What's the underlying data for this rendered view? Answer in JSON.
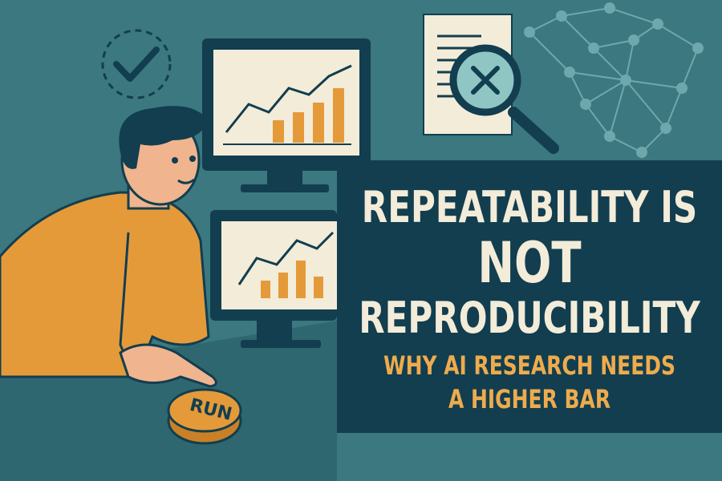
{
  "headline": {
    "line1": "REPEATABILITY IS",
    "line2": "NOT",
    "line3": "REPRODUCIBILITY"
  },
  "subtitle": {
    "line1": "WHY AI RESEARCH NEEDS",
    "line2": "A HIGHER BAR"
  },
  "button": {
    "label": "RUN"
  },
  "icons": [
    "checkmark-icon",
    "document-magnifier-x-icon",
    "network-graph-icon",
    "monitor-chart-icon"
  ],
  "colors": {
    "background": "#3b7880",
    "panel": "#123e4f",
    "title": "#f3ecd9",
    "accent": "#eeab4d"
  }
}
